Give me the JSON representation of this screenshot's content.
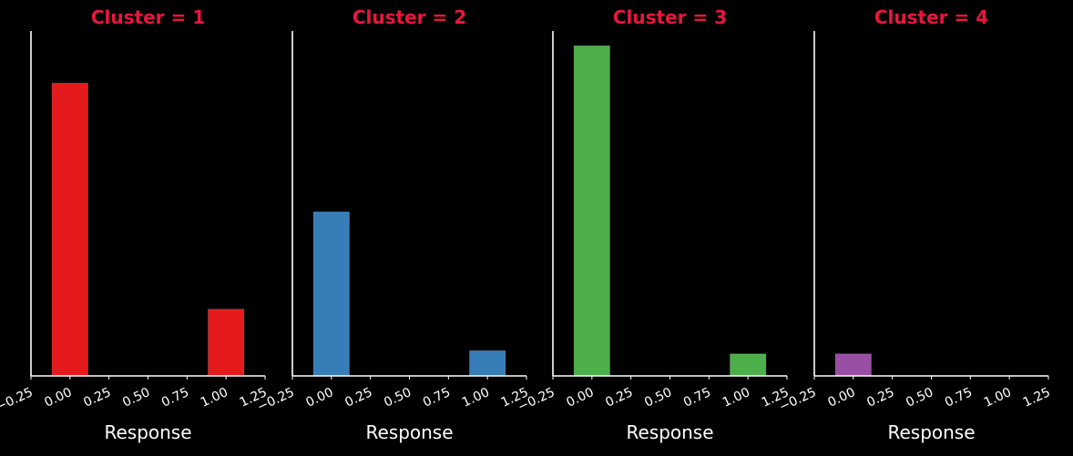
{
  "figure": {
    "background": "#000000",
    "axis_color": "#ffffff",
    "title_color": "#e8173c"
  },
  "chart_data": [
    {
      "type": "bar",
      "title": "Cluster = 1",
      "xlabel": "Response",
      "ylabel": "",
      "xlim": [
        -0.25,
        1.25
      ],
      "xticks": [
        "−0.25",
        "0.00",
        "0.25",
        "0.50",
        "0.75",
        "1.00",
        "1.25"
      ],
      "ylim": [
        0,
        1
      ],
      "grid": false,
      "color": "#e41a1c",
      "bars": [
        {
          "x": 0.0,
          "value": 0.825
        },
        {
          "x": 1.0,
          "value": 0.188
        }
      ]
    },
    {
      "type": "bar",
      "title": "Cluster = 2",
      "xlabel": "Response",
      "ylabel": "",
      "xlim": [
        -0.25,
        1.25
      ],
      "xticks": [
        "−0.25",
        "0.00",
        "0.25",
        "0.50",
        "0.75",
        "1.00",
        "1.25"
      ],
      "ylim": [
        0,
        1
      ],
      "grid": false,
      "color": "#377eb8",
      "bars": [
        {
          "x": 0.0,
          "value": 0.462
        },
        {
          "x": 1.0,
          "value": 0.071
        }
      ]
    },
    {
      "type": "bar",
      "title": "Cluster = 3",
      "xlabel": "Response",
      "ylabel": "",
      "xlim": [
        -0.25,
        1.25
      ],
      "xticks": [
        "−0.25",
        "0.00",
        "0.25",
        "0.50",
        "0.75",
        "1.00",
        "1.25"
      ],
      "ylim": [
        0,
        1
      ],
      "grid": false,
      "color": "#4daf4a",
      "bars": [
        {
          "x": 0.0,
          "value": 0.93
        },
        {
          "x": 1.0,
          "value": 0.062
        }
      ]
    },
    {
      "type": "bar",
      "title": "Cluster = 4",
      "xlabel": "Response",
      "ylabel": "",
      "xlim": [
        -0.25,
        1.25
      ],
      "xticks": [
        "−0.25",
        "0.00",
        "0.25",
        "0.50",
        "0.75",
        "1.00",
        "1.25"
      ],
      "ylim": [
        0,
        1
      ],
      "grid": false,
      "color": "#984ea3",
      "bars": [
        {
          "x": 0.0,
          "value": 0.062
        }
      ]
    }
  ]
}
